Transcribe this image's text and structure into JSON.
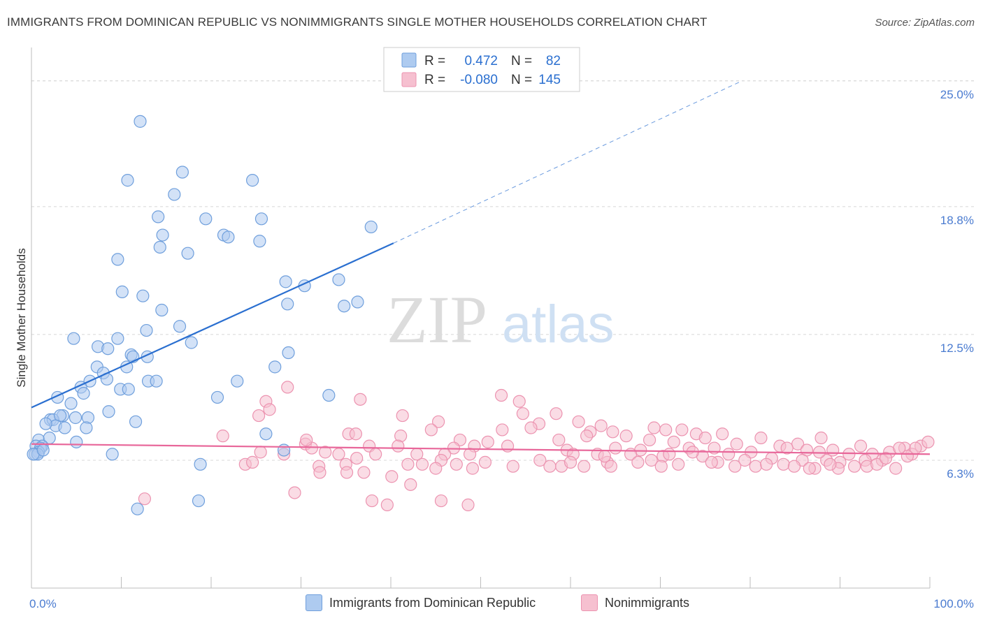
{
  "title": "IMMIGRANTS FROM DOMINICAN REPUBLIC VS NONIMMIGRANTS SINGLE MOTHER HOUSEHOLDS CORRELATION CHART",
  "source": "Source: ZipAtlas.com",
  "watermark": {
    "zip": "ZIP",
    "atlas": "atlas"
  },
  "colors": {
    "blue_fill": "#aecbf0",
    "blue_stroke": "#6f9fdc",
    "blue_line": "#2a6fd0",
    "pink_fill": "#f6c0d0",
    "pink_stroke": "#ec93b0",
    "pink_line": "#e8679a",
    "tick_text": "#4a7bd0",
    "grid": "#d8d8d8"
  },
  "legend": {
    "rows": [
      {
        "r_label": "R =",
        "r_value": "0.472",
        "n_label": "N =",
        "n_value": "82"
      },
      {
        "r_label": "R =",
        "r_value": "-0.080",
        "n_label": "N =",
        "n_value": "145"
      }
    ]
  },
  "bottom_legend": {
    "series1": "Immigrants from Dominican Republic",
    "series2": "Nonimmigrants"
  },
  "chart_data": {
    "type": "scatter",
    "xlabel": "",
    "ylabel": "Single Mother Households",
    "xlim": [
      0,
      100
    ],
    "ylim": [
      0,
      26.3
    ],
    "x_tick_labels": [
      {
        "value": 0,
        "label": "0.0%"
      },
      {
        "value": 100,
        "label": "100.0%"
      }
    ],
    "y_ticks": [
      {
        "value": 6.3,
        "label": "6.3%"
      },
      {
        "value": 12.5,
        "label": "12.5%"
      },
      {
        "value": 18.8,
        "label": "18.8%"
      },
      {
        "value": 25.0,
        "label": "25.0%"
      }
    ],
    "grid": "horizontal dashed",
    "series": [
      {
        "name": "Immigrants from Dominican Republic",
        "color": "#6f9fdc",
        "trend": {
          "x": [
            0,
            40.3
          ],
          "y": [
            8.9,
            17.0
          ],
          "extended_to": [
            79.1,
            25.0
          ]
        },
        "points": [
          [
            12.1,
            23.0
          ],
          [
            16.8,
            20.5
          ],
          [
            10.7,
            20.1
          ],
          [
            24.6,
            20.1
          ],
          [
            15.9,
            19.4
          ],
          [
            14.1,
            18.3
          ],
          [
            19.4,
            18.2
          ],
          [
            25.6,
            18.2
          ],
          [
            37.8,
            17.8
          ],
          [
            21.4,
            17.4
          ],
          [
            14.6,
            17.4
          ],
          [
            21.9,
            17.3
          ],
          [
            25.4,
            17.1
          ],
          [
            14.3,
            16.8
          ],
          [
            17.4,
            16.5
          ],
          [
            9.6,
            16.2
          ],
          [
            28.3,
            15.1
          ],
          [
            30.4,
            14.9
          ],
          [
            34.2,
            15.2
          ],
          [
            10.1,
            14.6
          ],
          [
            12.4,
            14.4
          ],
          [
            36.3,
            14.1
          ],
          [
            34.8,
            13.9
          ],
          [
            28.5,
            14.0
          ],
          [
            14.5,
            13.7
          ],
          [
            16.5,
            12.9
          ],
          [
            12.8,
            12.7
          ],
          [
            4.7,
            12.3
          ],
          [
            9.6,
            12.3
          ],
          [
            17.8,
            12.1
          ],
          [
            7.4,
            11.9
          ],
          [
            8.5,
            11.8
          ],
          [
            11.1,
            11.5
          ],
          [
            12.9,
            11.4
          ],
          [
            11.3,
            11.4
          ],
          [
            28.6,
            11.6
          ],
          [
            27.1,
            10.9
          ],
          [
            10.6,
            10.9
          ],
          [
            7.3,
            10.9
          ],
          [
            8.0,
            10.6
          ],
          [
            8.4,
            10.3
          ],
          [
            6.5,
            10.2
          ],
          [
            13.0,
            10.2
          ],
          [
            13.9,
            10.2
          ],
          [
            22.9,
            10.2
          ],
          [
            5.5,
            9.9
          ],
          [
            9.9,
            9.8
          ],
          [
            10.8,
            9.8
          ],
          [
            5.8,
            9.6
          ],
          [
            33.1,
            9.5
          ],
          [
            20.7,
            9.4
          ],
          [
            2.9,
            9.4
          ],
          [
            4.4,
            9.1
          ],
          [
            8.6,
            8.7
          ],
          [
            3.5,
            8.5
          ],
          [
            2.1,
            8.3
          ],
          [
            2.4,
            8.3
          ],
          [
            3.2,
            8.5
          ],
          [
            6.3,
            8.4
          ],
          [
            4.9,
            8.4
          ],
          [
            2.7,
            8.0
          ],
          [
            11.6,
            8.2
          ],
          [
            3.7,
            7.9
          ],
          [
            6.1,
            7.9
          ],
          [
            1.6,
            8.1
          ],
          [
            26.1,
            7.6
          ],
          [
            0.8,
            7.3
          ],
          [
            2.0,
            7.4
          ],
          [
            5.0,
            7.2
          ],
          [
            1.2,
            7.0
          ],
          [
            0.5,
            7.0
          ],
          [
            1.0,
            6.9
          ],
          [
            0.8,
            6.7
          ],
          [
            0.4,
            6.6
          ],
          [
            0.7,
            6.6
          ],
          [
            28.1,
            6.8
          ],
          [
            9.0,
            6.6
          ],
          [
            18.8,
            6.1
          ],
          [
            11.8,
            3.9
          ],
          [
            18.6,
            4.3
          ],
          [
            0.2,
            6.6
          ],
          [
            1.3,
            6.8
          ]
        ]
      },
      {
        "name": "Nonimmigrants",
        "color": "#ec93b0",
        "trend": {
          "x": [
            0,
            100
          ],
          "y": [
            7.1,
            6.6
          ]
        },
        "points": [
          [
            28.5,
            9.9
          ],
          [
            36.6,
            9.3
          ],
          [
            26.1,
            9.2
          ],
          [
            26.5,
            8.8
          ],
          [
            25.3,
            8.5
          ],
          [
            52.3,
            9.5
          ],
          [
            54.3,
            9.2
          ],
          [
            54.7,
            8.6
          ],
          [
            58.4,
            8.6
          ],
          [
            41.3,
            8.5
          ],
          [
            45.3,
            8.2
          ],
          [
            56.5,
            8.1
          ],
          [
            60.9,
            8.2
          ],
          [
            63.4,
            8.0
          ],
          [
            69.3,
            7.9
          ],
          [
            72.4,
            7.8
          ],
          [
            44.5,
            7.8
          ],
          [
            52.4,
            7.8
          ],
          [
            55.6,
            7.9
          ],
          [
            62.2,
            7.7
          ],
          [
            64.7,
            7.7
          ],
          [
            70.6,
            7.8
          ],
          [
            74.0,
            7.6
          ],
          [
            76.9,
            7.6
          ],
          [
            81.2,
            7.4
          ],
          [
            87.9,
            7.4
          ],
          [
            35.3,
            7.6
          ],
          [
            36.1,
            7.6
          ],
          [
            41.1,
            7.5
          ],
          [
            21.3,
            7.5
          ],
          [
            47.7,
            7.3
          ],
          [
            50.8,
            7.2
          ],
          [
            58.7,
            7.3
          ],
          [
            61.8,
            7.5
          ],
          [
            66.2,
            7.5
          ],
          [
            68.8,
            7.3
          ],
          [
            71.5,
            7.2
          ],
          [
            75.0,
            7.4
          ],
          [
            78.5,
            7.1
          ],
          [
            83.3,
            7.0
          ],
          [
            85.3,
            7.1
          ],
          [
            92.3,
            7.0
          ],
          [
            97.2,
            6.9
          ],
          [
            99.0,
            7.0
          ],
          [
            99.8,
            7.2
          ],
          [
            30.5,
            7.1
          ],
          [
            37.6,
            7.0
          ],
          [
            40.8,
            7.0
          ],
          [
            47.0,
            6.9
          ],
          [
            49.3,
            7.0
          ],
          [
            53.0,
            7.0
          ],
          [
            59.6,
            6.8
          ],
          [
            65.0,
            6.9
          ],
          [
            67.8,
            6.8
          ],
          [
            73.2,
            6.9
          ],
          [
            76.0,
            6.9
          ],
          [
            80.1,
            6.7
          ],
          [
            84.1,
            6.9
          ],
          [
            86.3,
            6.8
          ],
          [
            89.2,
            6.8
          ],
          [
            91.0,
            6.6
          ],
          [
            93.6,
            6.6
          ],
          [
            95.5,
            6.7
          ],
          [
            98.0,
            6.6
          ],
          [
            32.7,
            6.7
          ],
          [
            38.3,
            6.6
          ],
          [
            31.2,
            6.9
          ],
          [
            34.2,
            6.6
          ],
          [
            46.0,
            6.6
          ],
          [
            48.8,
            6.6
          ],
          [
            60.3,
            6.6
          ],
          [
            63.0,
            6.6
          ],
          [
            66.7,
            6.6
          ],
          [
            70.3,
            6.5
          ],
          [
            74.7,
            6.5
          ],
          [
            77.6,
            6.6
          ],
          [
            79.4,
            6.3
          ],
          [
            82.4,
            6.4
          ],
          [
            85.8,
            6.3
          ],
          [
            88.5,
            6.3
          ],
          [
            90.0,
            6.2
          ],
          [
            92.8,
            6.3
          ],
          [
            94.7,
            6.3
          ],
          [
            97.5,
            6.5
          ],
          [
            25.5,
            6.7
          ],
          [
            28.1,
            6.6
          ],
          [
            42.9,
            6.6
          ],
          [
            45.6,
            6.3
          ],
          [
            50.5,
            6.2
          ],
          [
            56.6,
            6.3
          ],
          [
            59.0,
            6.0
          ],
          [
            64.1,
            6.2
          ],
          [
            69.0,
            6.3
          ],
          [
            72.0,
            6.1
          ],
          [
            76.4,
            6.2
          ],
          [
            80.6,
            6.0
          ],
          [
            83.7,
            6.1
          ],
          [
            87.2,
            5.9
          ],
          [
            89.8,
            5.9
          ],
          [
            91.6,
            6.0
          ],
          [
            93.0,
            6.0
          ],
          [
            96.2,
            5.9
          ],
          [
            23.8,
            6.1
          ],
          [
            24.6,
            6.2
          ],
          [
            32.0,
            6.0
          ],
          [
            35.0,
            6.1
          ],
          [
            43.5,
            6.1
          ],
          [
            47.3,
            6.1
          ],
          [
            53.6,
            6.0
          ],
          [
            57.7,
            6.0
          ],
          [
            61.5,
            6.0
          ],
          [
            64.5,
            6.0
          ],
          [
            70.1,
            6.0
          ],
          [
            75.7,
            6.2
          ],
          [
            78.3,
            6.0
          ],
          [
            81.8,
            6.1
          ],
          [
            84.9,
            6.0
          ],
          [
            86.6,
            5.9
          ],
          [
            88.9,
            6.1
          ],
          [
            94.1,
            6.1
          ],
          [
            98.4,
            6.9
          ],
          [
            95.1,
            6.4
          ],
          [
            87.7,
            6.7
          ],
          [
            73.6,
            6.7
          ],
          [
            41.9,
            6.1
          ],
          [
            45.0,
            5.9
          ],
          [
            49.1,
            5.9
          ],
          [
            60.0,
            6.2
          ],
          [
            63.8,
            6.5
          ],
          [
            67.5,
            6.2
          ],
          [
            71.0,
            6.6
          ],
          [
            36.2,
            6.4
          ],
          [
            32.1,
            5.7
          ],
          [
            35.1,
            5.7
          ],
          [
            37.0,
            5.7
          ],
          [
            40.1,
            5.5
          ],
          [
            42.2,
            5.1
          ],
          [
            12.6,
            4.4
          ],
          [
            29.3,
            4.7
          ],
          [
            37.9,
            4.3
          ],
          [
            39.6,
            4.1
          ],
          [
            45.6,
            4.3
          ],
          [
            48.6,
            4.1
          ],
          [
            96.6,
            6.9
          ],
          [
            30.6,
            7.3
          ]
        ]
      }
    ]
  }
}
